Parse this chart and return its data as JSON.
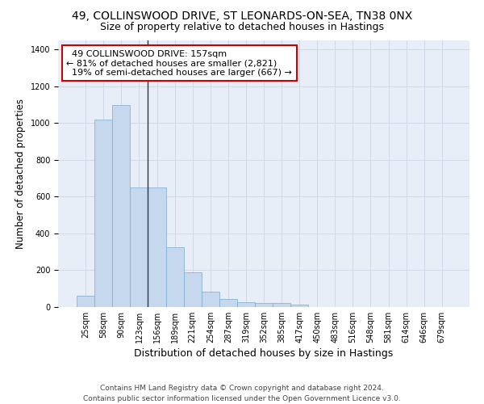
{
  "title": "49, COLLINSWOOD DRIVE, ST LEONARDS-ON-SEA, TN38 0NX",
  "subtitle": "Size of property relative to detached houses in Hastings",
  "xlabel": "Distribution of detached houses by size in Hastings",
  "ylabel": "Number of detached properties",
  "bar_values": [
    60,
    1020,
    1100,
    650,
    650,
    325,
    190,
    85,
    45,
    28,
    22,
    20,
    15,
    0,
    0,
    0,
    0,
    0,
    0,
    0,
    0
  ],
  "categories": [
    "25sqm",
    "58sqm",
    "90sqm",
    "123sqm",
    "156sqm",
    "189sqm",
    "221sqm",
    "254sqm",
    "287sqm",
    "319sqm",
    "352sqm",
    "385sqm",
    "417sqm",
    "450sqm",
    "483sqm",
    "516sqm",
    "548sqm",
    "581sqm",
    "614sqm",
    "646sqm",
    "679sqm"
  ],
  "bar_color": "#c5d8ee",
  "bar_edge_color": "#7aabce",
  "vline_position": 3.5,
  "vline_color": "#333333",
  "annotation_text": "  49 COLLINSWOOD DRIVE: 157sqm\n← 81% of detached houses are smaller (2,821)\n  19% of semi-detached houses are larger (667) →",
  "annotation_box_color": "#ffffff",
  "annotation_box_edgecolor": "#cc0000",
  "ylim": [
    0,
    1450
  ],
  "yticks": [
    0,
    200,
    400,
    600,
    800,
    1000,
    1200,
    1400
  ],
  "footer": "Contains HM Land Registry data © Crown copyright and database right 2024.\nContains public sector information licensed under the Open Government Licence v3.0.",
  "background_color": "#e8eef8",
  "grid_color": "#d0d8e8",
  "title_fontsize": 10,
  "subtitle_fontsize": 9,
  "ylabel_fontsize": 8.5,
  "xlabel_fontsize": 9,
  "tick_fontsize": 7,
  "annotation_fontsize": 8,
  "footer_fontsize": 6.5
}
